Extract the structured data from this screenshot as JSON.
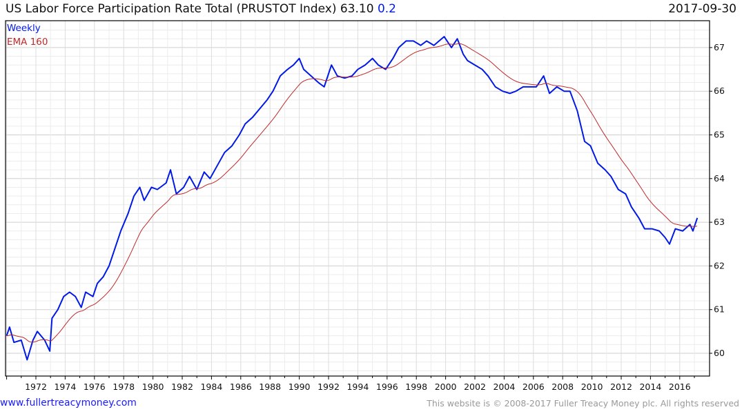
{
  "header": {
    "title": "US Labor Force Participation Rate Total (PRUSTOT Index) 63.10",
    "change": "0.2",
    "date": "2017-09-30"
  },
  "footer": {
    "link": "www.fullertreacymoney.com",
    "copyright": "This website is © 2008-2017 Fuller Treacy Money plc. All rights reserved"
  },
  "colors": {
    "series": "#0019e6",
    "ema": "#c0282a",
    "grid": "#e2e2e2"
  },
  "chart_data": {
    "type": "line",
    "title": "US Labor Force Participation Rate Total (PRUSTOT Index)",
    "legend": [
      "Weekly",
      "EMA 160"
    ],
    "legend_position": "top-left",
    "xlim": [
      1969.9,
      2018.0
    ],
    "ylim": [
      59.5,
      67.6
    ],
    "x_ticks": [
      "1972",
      "1974",
      "1976",
      "1978",
      "1980",
      "1982",
      "1984",
      "1986",
      "1988",
      "1990",
      "1992",
      "1994",
      "1996",
      "1998",
      "2000",
      "2002",
      "2004",
      "2006",
      "2008",
      "2010",
      "2012",
      "2014",
      "2016"
    ],
    "y_ticks": [
      "60",
      "61",
      "62",
      "63",
      "64",
      "65",
      "66",
      "67"
    ],
    "series": [
      {
        "name": "Weekly",
        "points": [
          [
            1970,
            60.4
          ],
          [
            1970.2,
            60.6
          ],
          [
            1970.5,
            60.25
          ],
          [
            1971,
            60.3
          ],
          [
            1971.4,
            59.85
          ],
          [
            1971.8,
            60.3
          ],
          [
            1972.1,
            60.5
          ],
          [
            1972.6,
            60.3
          ],
          [
            1972.95,
            60.05
          ],
          [
            1973.1,
            60.8
          ],
          [
            1973.5,
            61.0
          ],
          [
            1973.9,
            61.3
          ],
          [
            1974.3,
            61.4
          ],
          [
            1974.7,
            61.3
          ],
          [
            1975.1,
            61.05
          ],
          [
            1975.4,
            61.4
          ],
          [
            1975.9,
            61.3
          ],
          [
            1976.2,
            61.6
          ],
          [
            1976.6,
            61.75
          ],
          [
            1977,
            62.0
          ],
          [
            1977.3,
            62.3
          ],
          [
            1977.8,
            62.8
          ],
          [
            1978.3,
            63.2
          ],
          [
            1978.7,
            63.6
          ],
          [
            1979.1,
            63.8
          ],
          [
            1979.4,
            63.5
          ],
          [
            1979.9,
            63.8
          ],
          [
            1980.3,
            63.75
          ],
          [
            1980.9,
            63.9
          ],
          [
            1981.2,
            64.2
          ],
          [
            1981.6,
            63.65
          ],
          [
            1982.1,
            63.8
          ],
          [
            1982.5,
            64.05
          ],
          [
            1983,
            63.75
          ],
          [
            1983.5,
            64.15
          ],
          [
            1983.9,
            64.0
          ],
          [
            1984.4,
            64.3
          ],
          [
            1984.9,
            64.6
          ],
          [
            1985.4,
            64.75
          ],
          [
            1985.9,
            65.0
          ],
          [
            1986.3,
            65.25
          ],
          [
            1986.8,
            65.4
          ],
          [
            1987.3,
            65.6
          ],
          [
            1987.8,
            65.8
          ],
          [
            1988.2,
            66.0
          ],
          [
            1988.7,
            66.35
          ],
          [
            1989.2,
            66.5
          ],
          [
            1989.6,
            66.6
          ],
          [
            1990,
            66.75
          ],
          [
            1990.3,
            66.5
          ],
          [
            1990.8,
            66.35
          ],
          [
            1991.3,
            66.2
          ],
          [
            1991.7,
            66.1
          ],
          [
            1992.2,
            66.6
          ],
          [
            1992.6,
            66.35
          ],
          [
            1993.1,
            66.3
          ],
          [
            1993.6,
            66.35
          ],
          [
            1994,
            66.5
          ],
          [
            1994.5,
            66.6
          ],
          [
            1995,
            66.75
          ],
          [
            1995.4,
            66.6
          ],
          [
            1995.9,
            66.5
          ],
          [
            1996.4,
            66.75
          ],
          [
            1996.8,
            67.0
          ],
          [
            1997.3,
            67.15
          ],
          [
            1997.8,
            67.15
          ],
          [
            1998.3,
            67.05
          ],
          [
            1998.7,
            67.15
          ],
          [
            1999.2,
            67.05
          ],
          [
            1999.9,
            67.25
          ],
          [
            2000.4,
            67.0
          ],
          [
            2000.8,
            67.2
          ],
          [
            2001.2,
            66.85
          ],
          [
            2001.5,
            66.7
          ],
          [
            2002,
            66.6
          ],
          [
            2002.5,
            66.5
          ],
          [
            2002.9,
            66.35
          ],
          [
            2003.4,
            66.1
          ],
          [
            2003.9,
            66.0
          ],
          [
            2004.4,
            65.95
          ],
          [
            2004.8,
            66.0
          ],
          [
            2005.3,
            66.1
          ],
          [
            2005.7,
            66.1
          ],
          [
            2006.2,
            66.1
          ],
          [
            2006.7,
            66.35
          ],
          [
            2007.1,
            65.95
          ],
          [
            2007.6,
            66.1
          ],
          [
            2008.1,
            66.0
          ],
          [
            2008.5,
            66.0
          ],
          [
            2009,
            65.55
          ],
          [
            2009.5,
            64.85
          ],
          [
            2009.9,
            64.75
          ],
          [
            2010.4,
            64.35
          ],
          [
            2010.9,
            64.2
          ],
          [
            2011.3,
            64.05
          ],
          [
            2011.8,
            63.75
          ],
          [
            2012.3,
            63.65
          ],
          [
            2012.7,
            63.35
          ],
          [
            2013.2,
            63.1
          ],
          [
            2013.6,
            62.85
          ],
          [
            2014.1,
            62.85
          ],
          [
            2014.6,
            62.8
          ],
          [
            2015,
            62.65
          ],
          [
            2015.3,
            62.5
          ],
          [
            2015.7,
            62.85
          ],
          [
            2016.2,
            62.8
          ],
          [
            2016.7,
            62.95
          ],
          [
            2016.9,
            62.8
          ],
          [
            2017.2,
            63.1
          ]
        ]
      },
      {
        "name": "EMA 160",
        "period_weeks": 160
      }
    ]
  }
}
